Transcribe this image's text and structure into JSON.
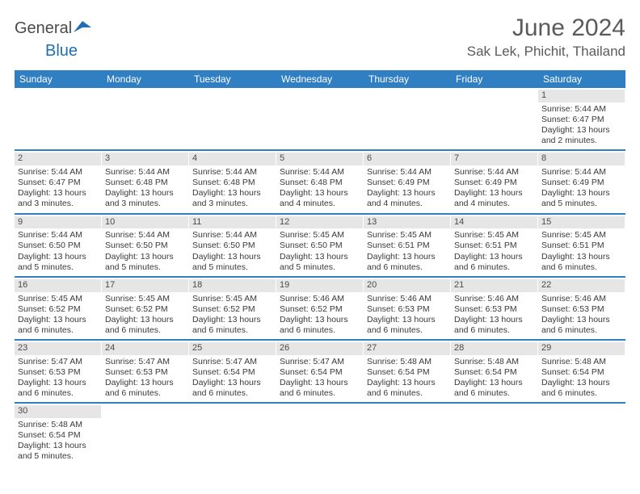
{
  "logo": {
    "general": "General",
    "blue": "Blue"
  },
  "title": "June 2024",
  "location": "Sak Lek, Phichit, Thailand",
  "colors": {
    "header_bg": "#2f7fc2",
    "header_text": "#ffffff",
    "daynum_bg": "#e6e6e6",
    "row_border": "#2f7fc2",
    "text": "#3a3a3a"
  },
  "days_of_week": [
    "Sunday",
    "Monday",
    "Tuesday",
    "Wednesday",
    "Thursday",
    "Friday",
    "Saturday"
  ],
  "weeks": [
    [
      null,
      null,
      null,
      null,
      null,
      null,
      {
        "n": "1",
        "sunrise": "5:44 AM",
        "sunset": "6:47 PM",
        "daylight": "13 hours and 2 minutes."
      }
    ],
    [
      {
        "n": "2",
        "sunrise": "5:44 AM",
        "sunset": "6:47 PM",
        "daylight": "13 hours and 3 minutes."
      },
      {
        "n": "3",
        "sunrise": "5:44 AM",
        "sunset": "6:48 PM",
        "daylight": "13 hours and 3 minutes."
      },
      {
        "n": "4",
        "sunrise": "5:44 AM",
        "sunset": "6:48 PM",
        "daylight": "13 hours and 3 minutes."
      },
      {
        "n": "5",
        "sunrise": "5:44 AM",
        "sunset": "6:48 PM",
        "daylight": "13 hours and 4 minutes."
      },
      {
        "n": "6",
        "sunrise": "5:44 AM",
        "sunset": "6:49 PM",
        "daylight": "13 hours and 4 minutes."
      },
      {
        "n": "7",
        "sunrise": "5:44 AM",
        "sunset": "6:49 PM",
        "daylight": "13 hours and 4 minutes."
      },
      {
        "n": "8",
        "sunrise": "5:44 AM",
        "sunset": "6:49 PM",
        "daylight": "13 hours and 5 minutes."
      }
    ],
    [
      {
        "n": "9",
        "sunrise": "5:44 AM",
        "sunset": "6:50 PM",
        "daylight": "13 hours and 5 minutes."
      },
      {
        "n": "10",
        "sunrise": "5:44 AM",
        "sunset": "6:50 PM",
        "daylight": "13 hours and 5 minutes."
      },
      {
        "n": "11",
        "sunrise": "5:44 AM",
        "sunset": "6:50 PM",
        "daylight": "13 hours and 5 minutes."
      },
      {
        "n": "12",
        "sunrise": "5:45 AM",
        "sunset": "6:50 PM",
        "daylight": "13 hours and 5 minutes."
      },
      {
        "n": "13",
        "sunrise": "5:45 AM",
        "sunset": "6:51 PM",
        "daylight": "13 hours and 6 minutes."
      },
      {
        "n": "14",
        "sunrise": "5:45 AM",
        "sunset": "6:51 PM",
        "daylight": "13 hours and 6 minutes."
      },
      {
        "n": "15",
        "sunrise": "5:45 AM",
        "sunset": "6:51 PM",
        "daylight": "13 hours and 6 minutes."
      }
    ],
    [
      {
        "n": "16",
        "sunrise": "5:45 AM",
        "sunset": "6:52 PM",
        "daylight": "13 hours and 6 minutes."
      },
      {
        "n": "17",
        "sunrise": "5:45 AM",
        "sunset": "6:52 PM",
        "daylight": "13 hours and 6 minutes."
      },
      {
        "n": "18",
        "sunrise": "5:45 AM",
        "sunset": "6:52 PM",
        "daylight": "13 hours and 6 minutes."
      },
      {
        "n": "19",
        "sunrise": "5:46 AM",
        "sunset": "6:52 PM",
        "daylight": "13 hours and 6 minutes."
      },
      {
        "n": "20",
        "sunrise": "5:46 AM",
        "sunset": "6:53 PM",
        "daylight": "13 hours and 6 minutes."
      },
      {
        "n": "21",
        "sunrise": "5:46 AM",
        "sunset": "6:53 PM",
        "daylight": "13 hours and 6 minutes."
      },
      {
        "n": "22",
        "sunrise": "5:46 AM",
        "sunset": "6:53 PM",
        "daylight": "13 hours and 6 minutes."
      }
    ],
    [
      {
        "n": "23",
        "sunrise": "5:47 AM",
        "sunset": "6:53 PM",
        "daylight": "13 hours and 6 minutes."
      },
      {
        "n": "24",
        "sunrise": "5:47 AM",
        "sunset": "6:53 PM",
        "daylight": "13 hours and 6 minutes."
      },
      {
        "n": "25",
        "sunrise": "5:47 AM",
        "sunset": "6:54 PM",
        "daylight": "13 hours and 6 minutes."
      },
      {
        "n": "26",
        "sunrise": "5:47 AM",
        "sunset": "6:54 PM",
        "daylight": "13 hours and 6 minutes."
      },
      {
        "n": "27",
        "sunrise": "5:48 AM",
        "sunset": "6:54 PM",
        "daylight": "13 hours and 6 minutes."
      },
      {
        "n": "28",
        "sunrise": "5:48 AM",
        "sunset": "6:54 PM",
        "daylight": "13 hours and 6 minutes."
      },
      {
        "n": "29",
        "sunrise": "5:48 AM",
        "sunset": "6:54 PM",
        "daylight": "13 hours and 6 minutes."
      }
    ],
    [
      {
        "n": "30",
        "sunrise": "5:48 AM",
        "sunset": "6:54 PM",
        "daylight": "13 hours and 5 minutes."
      },
      null,
      null,
      null,
      null,
      null,
      null
    ]
  ],
  "labels": {
    "sunrise": "Sunrise: ",
    "sunset": "Sunset: ",
    "daylight": "Daylight: "
  }
}
